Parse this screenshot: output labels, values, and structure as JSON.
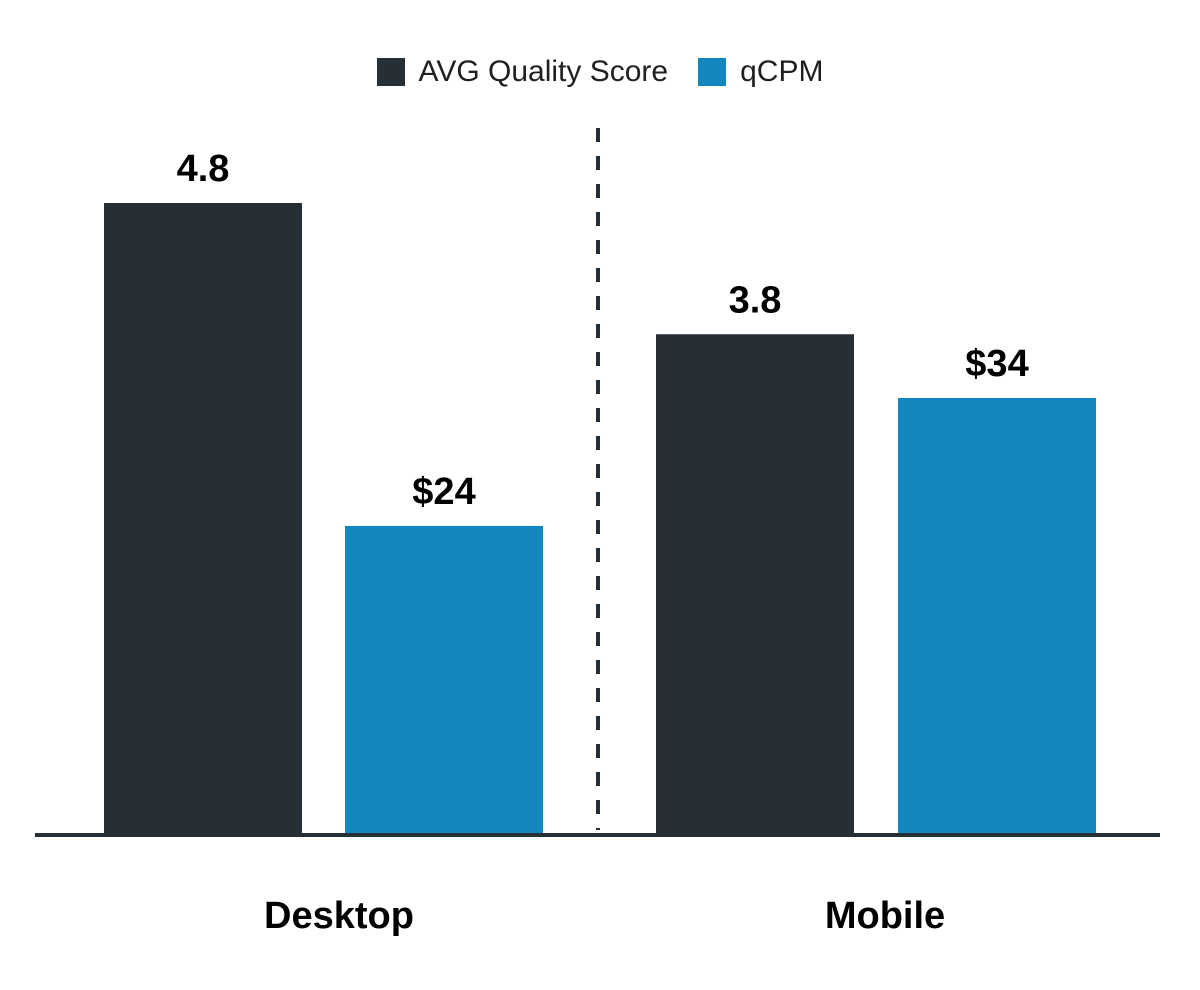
{
  "chart_data": {
    "type": "bar",
    "categories": [
      "Desktop",
      "Mobile"
    ],
    "series": [
      {
        "name": "AVG Quality Score",
        "color": "#272F36",
        "values": [
          4.8,
          3.8
        ],
        "value_labels": [
          "4.8",
          "3.8"
        ]
      },
      {
        "name": "qCPM",
        "color": "#1487BE",
        "values": [
          24,
          34
        ],
        "value_labels": [
          "$24",
          "$34"
        ]
      }
    ],
    "legend_position": "top-center",
    "grid": false,
    "category_separator": "dashed",
    "separator_color": "#272F36",
    "baseline_color": "#272F36"
  }
}
